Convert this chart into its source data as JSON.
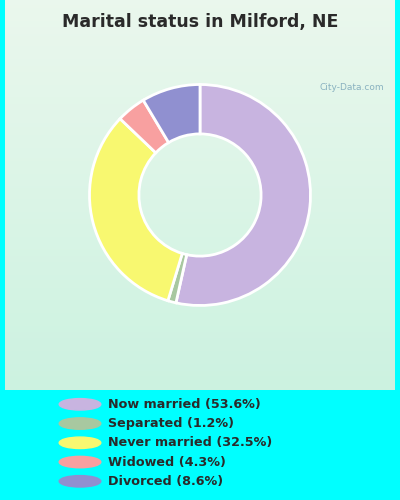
{
  "title": "Marital status in Milford, NE",
  "slices": [
    53.6,
    1.2,
    32.5,
    4.3,
    8.6
  ],
  "labels": [
    "Now married (53.6%)",
    "Separated (1.2%)",
    "Never married (32.5%)",
    "Widowed (4.3%)",
    "Divorced (8.6%)"
  ],
  "colors": [
    "#c8b4e0",
    "#a8c8a0",
    "#f8f870",
    "#f8a0a0",
    "#9090d0"
  ],
  "legend_bg": "#00ffff",
  "title_color": "#2a2a2a",
  "title_fontsize": 12.5,
  "watermark": "City-Data.com",
  "chart_bg_top": "#ddf0e8",
  "chart_bg_bottom": "#c8ece0",
  "legend_labels_order": [
    0,
    1,
    2,
    3,
    4
  ]
}
